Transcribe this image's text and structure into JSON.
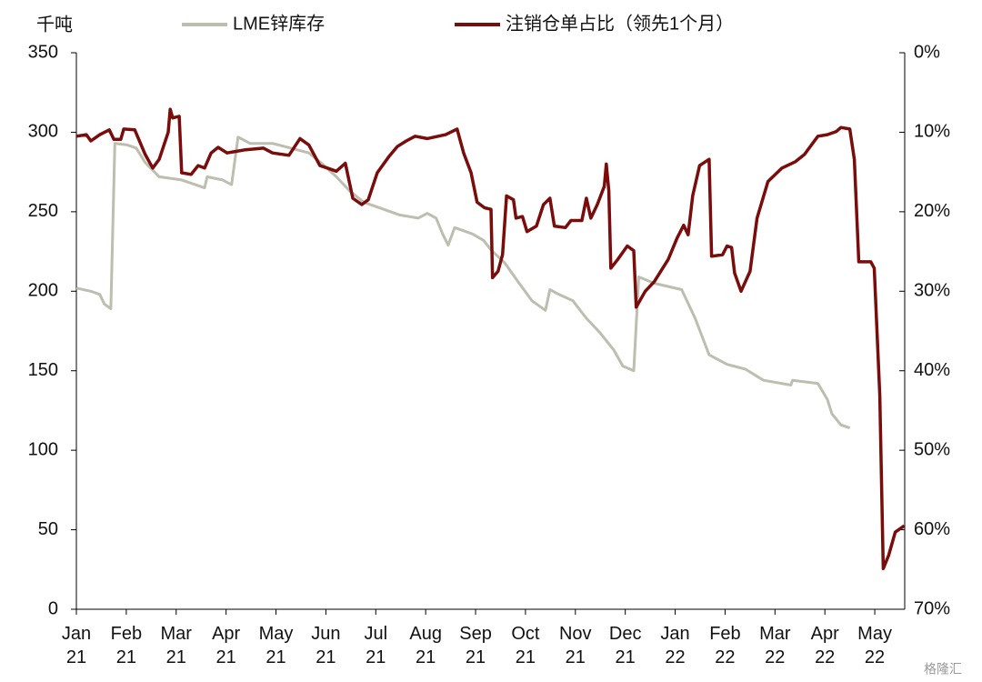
{
  "chart_data": {
    "type": "line",
    "y_label": "千吨",
    "legend": "top",
    "watermark": "格隆汇",
    "xlim": [
      0,
      16.6
    ],
    "xticks": [
      {
        "value": 0,
        "label": "Jan 21"
      },
      {
        "value": 1,
        "label": "Feb 21"
      },
      {
        "value": 2,
        "label": "Mar 21"
      },
      {
        "value": 3,
        "label": "Apr 21"
      },
      {
        "value": 4,
        "label": "May 21"
      },
      {
        "value": 5,
        "label": "Jun 21"
      },
      {
        "value": 6,
        "label": "Jul 21"
      },
      {
        "value": 7,
        "label": "Aug 21"
      },
      {
        "value": 8,
        "label": "Sep 21"
      },
      {
        "value": 9,
        "label": "Oct 21"
      },
      {
        "value": 10,
        "label": "Nov 21"
      },
      {
        "value": 11,
        "label": "Dec 21"
      },
      {
        "value": 12,
        "label": "Jan 22"
      },
      {
        "value": 13,
        "label": "Feb 22"
      },
      {
        "value": 14,
        "label": "Mar 22"
      },
      {
        "value": 15,
        "label": "Apr 22"
      },
      {
        "value": 16,
        "label": "May 22"
      }
    ],
    "ylim": [
      0,
      350
    ],
    "yticks": [
      0,
      50,
      100,
      150,
      200,
      250,
      300,
      350
    ],
    "y2lim": [
      70,
      0
    ],
    "y2ticks": [
      {
        "value": 0,
        "label": "0%"
      },
      {
        "value": 10,
        "label": "10%"
      },
      {
        "value": 20,
        "label": "20%"
      },
      {
        "value": 30,
        "label": "30%"
      },
      {
        "value": 40,
        "label": "40%"
      },
      {
        "value": 50,
        "label": "50%"
      },
      {
        "value": 60,
        "label": "60%"
      },
      {
        "value": 70,
        "label": "70%"
      }
    ],
    "series": [
      {
        "name": "LME锌库存",
        "color": "#bdbdb0",
        "axis": "y",
        "x": [
          0,
          0.29,
          0.47,
          0.56,
          0.69,
          0.77,
          1.02,
          1.2,
          1.38,
          1.66,
          2.11,
          2.57,
          2.62,
          2.93,
          3.11,
          3.24,
          3.48,
          3.93,
          4.3,
          4.66,
          4.93,
          5.21,
          5.48,
          5.76,
          6.12,
          6.48,
          6.85,
          7.03,
          7.21,
          7.34,
          7.45,
          7.58,
          7.94,
          8.16,
          8.31,
          8.58,
          8.85,
          9.13,
          9.4,
          9.49,
          9.67,
          9.95,
          10.22,
          10.49,
          10.77,
          10.95,
          11.17,
          11.27,
          11.58,
          12.13,
          12.4,
          12.68,
          13.04,
          13.41,
          13.77,
          14.32,
          14.35,
          14.86,
          15.05,
          15.14,
          15.32,
          15.5
        ],
        "values": [
          202,
          200,
          198,
          192,
          189,
          293,
          292,
          290,
          281,
          272,
          270,
          265,
          272,
          270,
          267,
          297,
          293,
          293,
          290,
          287,
          280,
          272,
          263,
          256,
          252,
          248,
          246,
          249,
          246,
          236,
          229,
          240,
          236,
          232,
          226,
          218,
          206,
          194,
          188,
          201,
          198,
          194,
          183,
          174,
          163,
          153,
          150,
          209,
          205,
          201,
          183,
          160,
          154,
          151,
          144,
          141,
          144,
          142,
          132,
          123,
          116,
          114
        ]
      },
      {
        "name": "注销仓单占比（领先1个月）",
        "color": "#7a0c0c",
        "axis": "y2",
        "x": [
          0,
          0.2,
          0.29,
          0.47,
          0.66,
          0.75,
          0.89,
          0.95,
          1.17,
          1.38,
          1.53,
          1.66,
          1.84,
          1.88,
          1.93,
          2.06,
          2.11,
          2.3,
          2.44,
          2.57,
          2.7,
          2.84,
          3.02,
          3.39,
          3.75,
          3.93,
          4.26,
          4.48,
          4.66,
          4.88,
          5.03,
          5.21,
          5.39,
          5.54,
          5.72,
          5.85,
          6.03,
          6.27,
          6.43,
          6.61,
          6.79,
          7.03,
          7.4,
          7.63,
          7.76,
          7.91,
          8.03,
          8.18,
          8.31,
          8.34,
          8.45,
          8.54,
          8.62,
          8.76,
          8.81,
          8.94,
          9.03,
          9.22,
          9.36,
          9.49,
          9.58,
          9.8,
          9.91,
          10.13,
          10.22,
          10.31,
          10.44,
          10.58,
          10.62,
          10.67,
          10.71,
          10.85,
          11.04,
          11.17,
          11.22,
          11.4,
          11.58,
          11.86,
          12.04,
          12.17,
          12.26,
          12.35,
          12.49,
          12.68,
          12.73,
          12.95,
          13.04,
          13.13,
          13.19,
          13.32,
          13.5,
          13.64,
          13.86,
          14.14,
          14.41,
          14.59,
          14.86,
          15.05,
          15.23,
          15.32,
          15.5,
          15.59,
          15.68,
          15.92,
          15.99,
          16.1,
          16.17,
          16.28,
          16.41,
          16.59
        ],
        "values": [
          10.5,
          10.3,
          11.1,
          10.3,
          9.7,
          10.9,
          10.9,
          9.6,
          9.7,
          12.8,
          14.5,
          13.4,
          10.0,
          7.1,
          8.2,
          8.0,
          15.1,
          15.3,
          14.2,
          14.5,
          12.6,
          11.9,
          12.6,
          12.2,
          12.0,
          12.6,
          12.9,
          10.8,
          11.6,
          14.2,
          14.5,
          14.9,
          13.9,
          18.3,
          19.1,
          18.5,
          15.1,
          13.0,
          11.8,
          11.1,
          10.5,
          10.8,
          10.3,
          9.6,
          12.6,
          15.1,
          18.8,
          19.5,
          19.7,
          28.3,
          27.5,
          25.4,
          18.0,
          18.5,
          20.8,
          20.6,
          22.5,
          21.8,
          19.1,
          18.3,
          21.8,
          22.0,
          21.1,
          21.1,
          18.3,
          20.8,
          19.1,
          16.8,
          14.0,
          17.4,
          27.1,
          26.0,
          24.3,
          24.9,
          32.0,
          30.0,
          28.8,
          26.0,
          23.3,
          21.7,
          22.9,
          18.0,
          14.2,
          13.4,
          25.6,
          25.4,
          24.3,
          24.5,
          27.7,
          30.0,
          27.5,
          20.8,
          16.2,
          14.5,
          13.7,
          12.8,
          10.5,
          10.3,
          9.9,
          9.4,
          9.6,
          13.4,
          26.3,
          26.3,
          27.1,
          43.1,
          64.9,
          63.2,
          60.3,
          59.5
        ]
      }
    ]
  }
}
